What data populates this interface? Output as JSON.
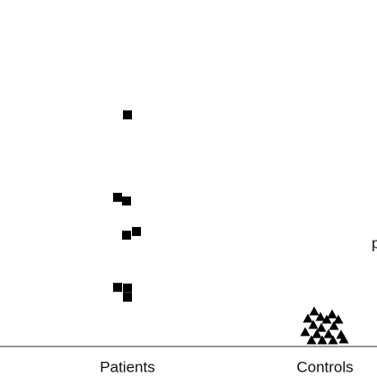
{
  "chart_data": {
    "type": "strip",
    "categories": [
      "Patients",
      "Controls"
    ],
    "values": [
      [
        70.5,
        45.4,
        44.3,
        33.9,
        35.0,
        18.0,
        17.8,
        15.0
      ],
      [
        10.7,
        8.5,
        9.0,
        9.8,
        8.2,
        8.2,
        6.6,
        5.7,
        6.3,
        4.4,
        3.8,
        3.8,
        3.6,
        1.9,
        1.9,
        1.9,
        2.2
      ]
    ],
    "markers": [
      "square",
      "triangle"
    ],
    "color": "#000000",
    "ylim": [
      0,
      100
    ],
    "annotation": "p"
  }
}
